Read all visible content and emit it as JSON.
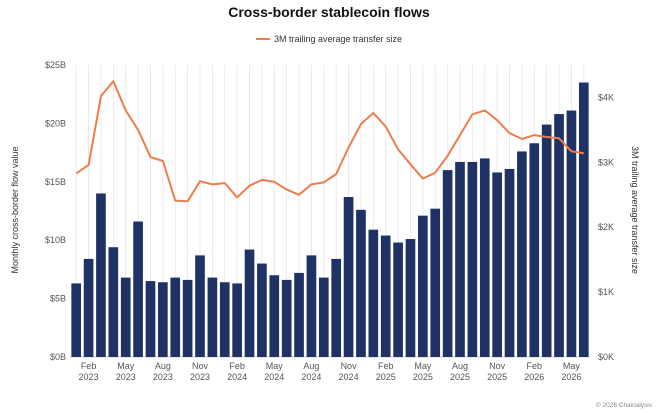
{
  "footer": "© 2026 Chainalysis",
  "chart_data": {
    "type": "bar+line",
    "title": "Cross-border stablecoin flows",
    "ylabel_left": "Monthly cross-border flow value",
    "ylabel_right": "3M trailing average transfer size",
    "ylim_left": [
      0,
      25
    ],
    "ylim_right": [
      0,
      4500
    ],
    "left_ticks": [
      "$0B",
      "$5B",
      "$10B",
      "$15B",
      "$20B",
      "$25B"
    ],
    "right_ticks": [
      "$0K",
      "$1K",
      "$2K",
      "$3K",
      "$4K"
    ],
    "x_tick_labels": [
      {
        "month": "Feb",
        "year": "2023",
        "index": 1
      },
      {
        "month": "May",
        "year": "2023",
        "index": 4
      },
      {
        "month": "Aug",
        "year": "2023",
        "index": 7
      },
      {
        "month": "Nov",
        "year": "2023",
        "index": 10
      },
      {
        "month": "Feb",
        "year": "2024",
        "index": 13
      },
      {
        "month": "May",
        "year": "2024",
        "index": 16
      },
      {
        "month": "Aug",
        "year": "2024",
        "index": 19
      },
      {
        "month": "Nov",
        "year": "2024",
        "index": 22
      },
      {
        "month": "Feb",
        "year": "2025",
        "index": 25
      },
      {
        "month": "May",
        "year": "2025",
        "index": 28
      },
      {
        "month": "Aug",
        "year": "2025",
        "index": 31
      },
      {
        "month": "Nov",
        "year": "2025",
        "index": 34
      },
      {
        "month": "Feb",
        "year": "2026",
        "index": 37
      },
      {
        "month": "May",
        "year": "2026",
        "index": 40
      }
    ],
    "bar_values": [
      6.3,
      8.4,
      14.0,
      9.4,
      6.8,
      11.6,
      6.5,
      6.4,
      6.8,
      6.6,
      8.7,
      6.8,
      6.4,
      6.3,
      9.2,
      8.0,
      7.0,
      6.6,
      7.2,
      8.7,
      6.8,
      8.4,
      13.7,
      12.6,
      10.9,
      10.4,
      9.8,
      10.1,
      12.1,
      12.7,
      16.0,
      16.7,
      16.7,
      17.0,
      15.8,
      16.1,
      17.6,
      18.3,
      19.9,
      20.8,
      21.1,
      23.5
    ],
    "line_values": [
      2830,
      2960,
      4020,
      4250,
      3800,
      3500,
      3080,
      3020,
      2410,
      2400,
      2710,
      2660,
      2680,
      2460,
      2640,
      2730,
      2700,
      2580,
      2500,
      2660,
      2690,
      2820,
      3230,
      3590,
      3760,
      3550,
      3200,
      2970,
      2750,
      2840,
      3100,
      3420,
      3740,
      3800,
      3650,
      3450,
      3360,
      3420,
      3390,
      3370,
      3170,
      3140
    ],
    "bar_color": "#1f3266",
    "line_color": "#ef7d4b",
    "legend": {
      "label": "3M trailing average transfer size",
      "position": "top-center"
    },
    "grid": "vertical"
  }
}
